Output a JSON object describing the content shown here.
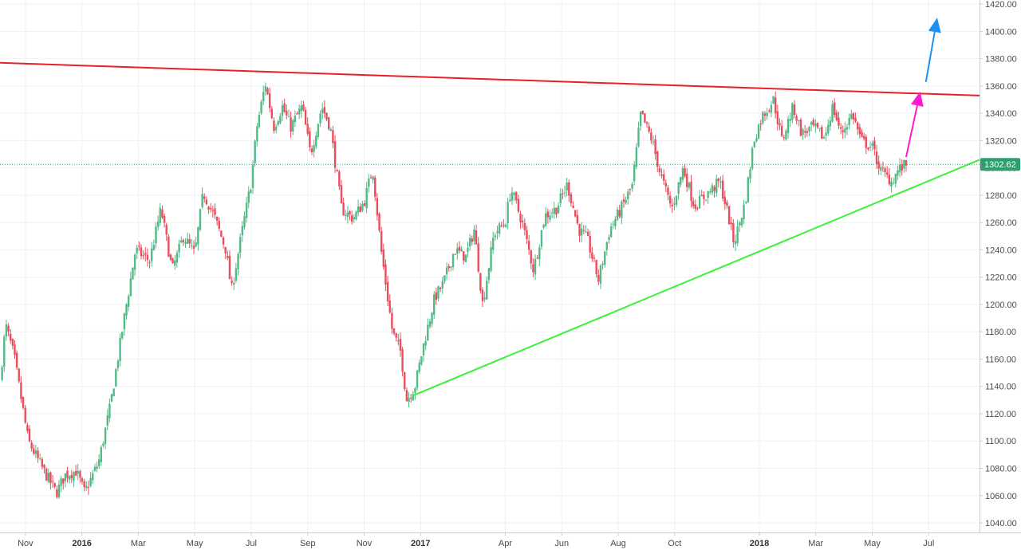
{
  "chart_data": {
    "type": "candlestick",
    "colors": {
      "up": "#53b987",
      "down": "#eb4d5c",
      "grid": "#eef1f4",
      "axis": "#c8ccd0",
      "resistance": "#e8202a",
      "support": "#3ef03a",
      "arrow_blue": "#1e90f0",
      "arrow_magenta": "#ff1ad0",
      "last_price": "#2f9e6e"
    },
    "ylim": [
      1033,
      1423
    ],
    "ylabels": [
      "1040.00",
      "1060.00",
      "1080.00",
      "1100.00",
      "1120.00",
      "1140.00",
      "1160.00",
      "1180.00",
      "1200.00",
      "1220.00",
      "1240.00",
      "1260.00",
      "1280.00",
      "1300.00",
      "1320.00",
      "1340.00",
      "1360.00",
      "1380.00",
      "1400.00",
      "1420.00"
    ],
    "xticks": [
      {
        "label": "Nov",
        "t": 2,
        "major": false
      },
      {
        "label": "2016",
        "t": 4,
        "major": true
      },
      {
        "label": "Mar",
        "t": 6,
        "major": false
      },
      {
        "label": "May",
        "t": 8,
        "major": false
      },
      {
        "label": "Jul",
        "t": 10,
        "major": false
      },
      {
        "label": "Sep",
        "t": 12,
        "major": false
      },
      {
        "label": "Nov",
        "t": 14,
        "major": false
      },
      {
        "label": "2017",
        "t": 16,
        "major": true
      },
      {
        "label": "Apr",
        "t": 19,
        "major": false
      },
      {
        "label": "Jun",
        "t": 21,
        "major": false
      },
      {
        "label": "Aug",
        "t": 23,
        "major": false
      },
      {
        "label": "Oct",
        "t": 25,
        "major": false
      },
      {
        "label": "2018",
        "t": 28,
        "major": true
      },
      {
        "label": "Mar",
        "t": 30,
        "major": false
      },
      {
        "label": "May",
        "t": 32,
        "major": false
      },
      {
        "label": "Jul",
        "t": 34,
        "major": false
      }
    ],
    "xlim": [
      1.1,
      35.8
    ],
    "close_path": [
      [
        1.1,
        1143
      ],
      [
        1.3,
        1185
      ],
      [
        1.6,
        1162
      ],
      [
        2.1,
        1100
      ],
      [
        2.6,
        1080
      ],
      [
        3.1,
        1062
      ],
      [
        3.4,
        1075
      ],
      [
        3.8,
        1078
      ],
      [
        4.1,
        1062
      ],
      [
        4.6,
        1085
      ],
      [
        5.0,
        1125
      ],
      [
        5.5,
        1190
      ],
      [
        5.9,
        1240
      ],
      [
        6.4,
        1232
      ],
      [
        6.8,
        1270
      ],
      [
        7.2,
        1225
      ],
      [
        7.6,
        1250
      ],
      [
        8.0,
        1237
      ],
      [
        8.3,
        1282
      ],
      [
        8.7,
        1264
      ],
      [
        9.1,
        1240
      ],
      [
        9.3,
        1210
      ],
      [
        9.6,
        1245
      ],
      [
        10.0,
        1290
      ],
      [
        10.2,
        1330
      ],
      [
        10.5,
        1362
      ],
      [
        10.8,
        1330
      ],
      [
        11.1,
        1345
      ],
      [
        11.4,
        1330
      ],
      [
        11.8,
        1345
      ],
      [
        12.1,
        1310
      ],
      [
        12.5,
        1345
      ],
      [
        12.8,
        1330
      ],
      [
        13.2,
        1270
      ],
      [
        13.6,
        1263
      ],
      [
        14.0,
        1275
      ],
      [
        14.3,
        1300
      ],
      [
        14.6,
        1240
      ],
      [
        15.0,
        1180
      ],
      [
        15.3,
        1165
      ],
      [
        15.5,
        1130
      ],
      [
        15.8,
        1140
      ],
      [
        16.1,
        1170
      ],
      [
        16.5,
        1205
      ],
      [
        16.8,
        1215
      ],
      [
        17.2,
        1240
      ],
      [
        17.6,
        1235
      ],
      [
        17.9,
        1255
      ],
      [
        18.2,
        1200
      ],
      [
        18.6,
        1252
      ],
      [
        19.0,
        1260
      ],
      [
        19.2,
        1285
      ],
      [
        19.6,
        1260
      ],
      [
        20.0,
        1225
      ],
      [
        20.4,
        1265
      ],
      [
        20.8,
        1270
      ],
      [
        21.2,
        1288
      ],
      [
        21.6,
        1255
      ],
      [
        21.9,
        1248
      ],
      [
        22.3,
        1218
      ],
      [
        22.7,
        1255
      ],
      [
        23.1,
        1270
      ],
      [
        23.5,
        1287
      ],
      [
        23.8,
        1340
      ],
      [
        24.2,
        1320
      ],
      [
        24.5,
        1295
      ],
      [
        24.9,
        1270
      ],
      [
        25.3,
        1300
      ],
      [
        25.7,
        1272
      ],
      [
        26.1,
        1280
      ],
      [
        26.6,
        1290
      ],
      [
        26.9,
        1265
      ],
      [
        27.1,
        1245
      ],
      [
        27.5,
        1275
      ],
      [
        27.8,
        1320
      ],
      [
        28.1,
        1338
      ],
      [
        28.5,
        1350
      ],
      [
        28.8,
        1320
      ],
      [
        29.2,
        1345
      ],
      [
        29.5,
        1325
      ],
      [
        29.9,
        1330
      ],
      [
        30.3,
        1322
      ],
      [
        30.6,
        1345
      ],
      [
        30.9,
        1325
      ],
      [
        31.3,
        1340
      ],
      [
        31.6,
        1320
      ],
      [
        32.0,
        1315
      ],
      [
        32.3,
        1298
      ],
      [
        32.7,
        1290
      ],
      [
        32.9,
        1298
      ],
      [
        33.2,
        1302.6
      ]
    ],
    "resistance_line": {
      "from": [
        1.1,
        1377
      ],
      "to": [
        35.8,
        1353
      ]
    },
    "support_line": {
      "from": [
        15.7,
        1133
      ],
      "to": [
        35.8,
        1306
      ]
    },
    "arrows": [
      {
        "name": "magenta",
        "from": [
          33.2,
          1308
        ],
        "to": [
          33.7,
          1356
        ]
      },
      {
        "name": "blue",
        "from": [
          33.9,
          1363
        ],
        "to": [
          34.3,
          1410
        ]
      }
    ],
    "last_price": 1302.62,
    "last_price_label": "1302.62"
  }
}
